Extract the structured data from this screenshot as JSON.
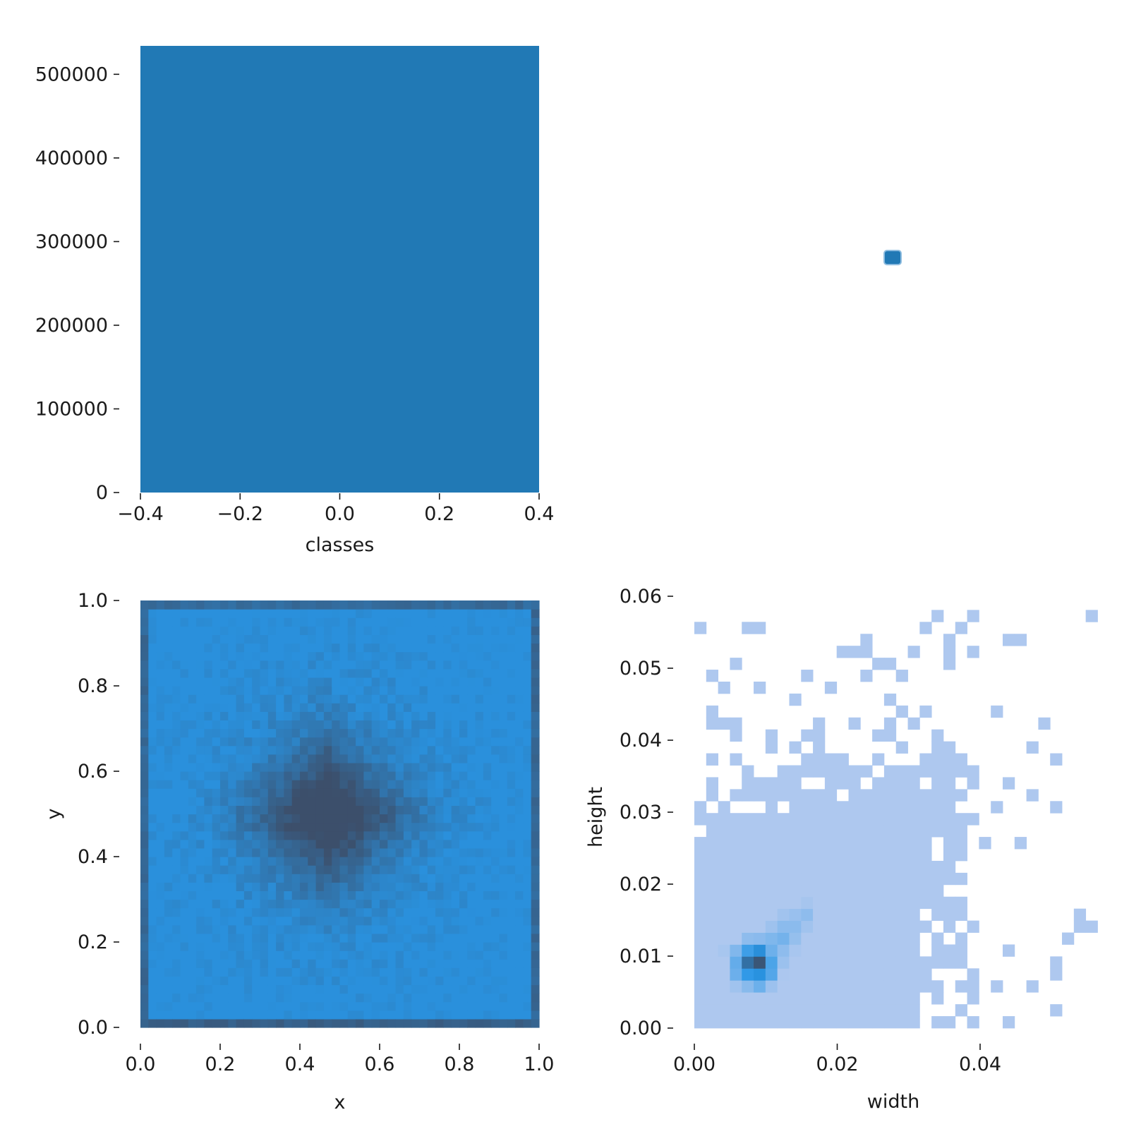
{
  "chart_data": [
    {
      "id": "classes",
      "type": "bar",
      "xlabel": "classes",
      "ylabel": "",
      "xlim": [
        -0.4,
        0.4
      ],
      "ylim": [
        0,
        534000
      ],
      "xticks": [
        -0.4,
        -0.2,
        0.0,
        0.2,
        0.4
      ],
      "xtick_labels": [
        "−0.4",
        "−0.2",
        "0.0",
        "0.2",
        "0.4"
      ],
      "yticks": [
        0,
        100000,
        200000,
        300000,
        400000,
        500000
      ],
      "ytick_labels": [
        "0",
        "100000",
        "200000",
        "300000",
        "400000",
        "500000"
      ],
      "categories": [
        0
      ],
      "values": [
        534000
      ],
      "color": "#2179b5",
      "grid": false
    },
    {
      "id": "classes-vs-width",
      "type": "scatter",
      "xlabel": "",
      "ylabel": "",
      "points": [
        {
          "x": 0.0,
          "y": 0.0
        }
      ],
      "color": "#2179b5",
      "grid": false
    },
    {
      "id": "x-y",
      "type": "heatmap",
      "xlabel": "x",
      "ylabel": "y",
      "xlim": [
        0,
        1
      ],
      "ylim": [
        0,
        1
      ],
      "xticks": [
        0,
        0.2,
        0.4,
        0.6,
        0.8,
        1.0
      ],
      "xtick_labels": [
        "0.0",
        "0.2",
        "0.4",
        "0.6",
        "0.8",
        "1.0"
      ],
      "yticks": [
        0,
        0.2,
        0.4,
        0.6,
        0.8,
        1.0
      ],
      "ytick_labels": [
        "0.0",
        "0.2",
        "0.4",
        "0.6",
        "0.8",
        "1.0"
      ],
      "bins": 50,
      "color_low": "#2896e6",
      "color_high": "#3c4f6b",
      "density_model": "edges high, center peak at (0.47, 0.5)",
      "grid": false
    },
    {
      "id": "width-height",
      "type": "heatmap",
      "xlabel": "width",
      "ylabel": "height",
      "xlim": [
        0,
        0.056
      ],
      "ylim": [
        0,
        0.062
      ],
      "xticks": [
        0.0,
        0.02,
        0.04
      ],
      "xtick_labels": [
        "0.00",
        "0.02",
        "0.04"
      ],
      "yticks": [
        0.0,
        0.01,
        0.02,
        0.03,
        0.04,
        0.05,
        0.06
      ],
      "ytick_labels": [
        "0.00",
        "0.01",
        "0.02",
        "0.03",
        "0.04",
        "0.05",
        "0.06"
      ],
      "bin_width": 0.00166,
      "bin_height": 0.00166,
      "color_low": "#aec8ef",
      "color_mid": "#2896e6",
      "color_high": "#3c4f6b",
      "dense_core": {
        "x": 0.0085,
        "y": 0.009
      },
      "grid": false
    }
  ]
}
